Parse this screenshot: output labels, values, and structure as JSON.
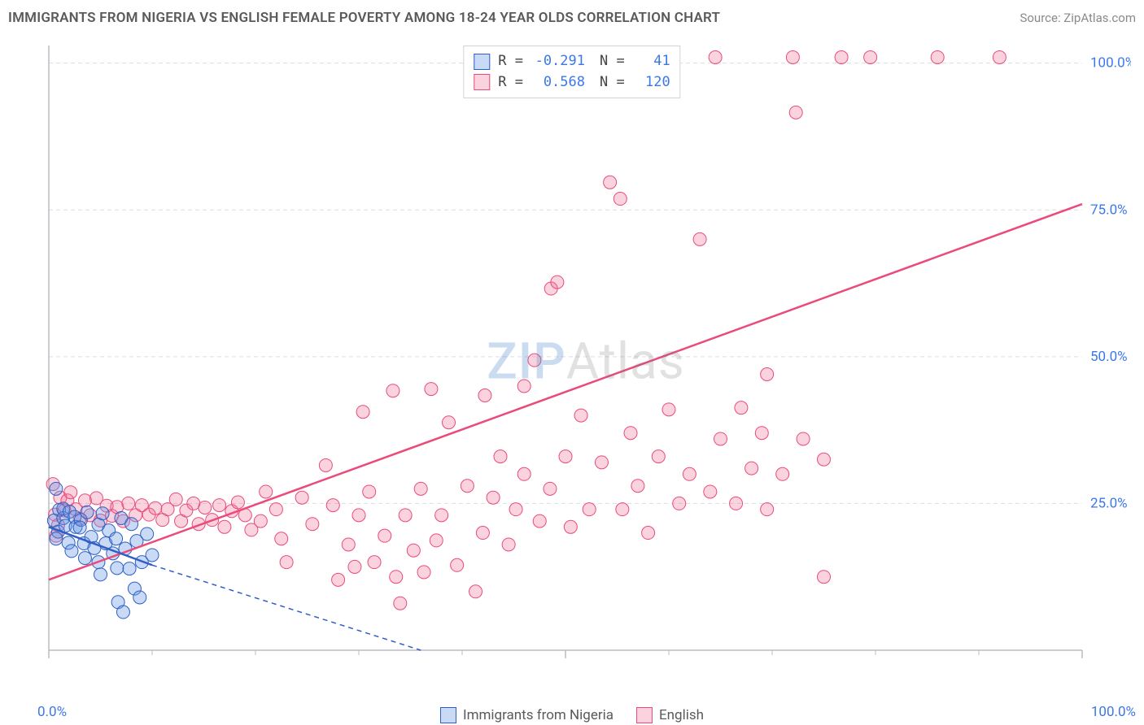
{
  "header": {
    "title": "IMMIGRANTS FROM NIGERIA VS ENGLISH FEMALE POVERTY AMONG 18-24 YEAR OLDS CORRELATION CHART",
    "source": "Source: ZipAtlas.com"
  },
  "watermark": {
    "zip": "ZIP",
    "atlas": "Atlas"
  },
  "ylabel": "Female Poverty Among 18-24 Year Olds",
  "chart": {
    "type": "scatter",
    "background_color": "#ffffff",
    "grid_color": "#d9dde2",
    "axis_color": "#b8bdc4",
    "tick_color": "#b8bdc4",
    "xlim": [
      0,
      100
    ],
    "ylim": [
      0,
      103
    ],
    "x_ticks_major": [
      0,
      50,
      100
    ],
    "x_ticks_minor": [
      10,
      20,
      30,
      40,
      60,
      70,
      80,
      90
    ],
    "y_ticks_major": [
      25,
      50,
      75,
      100
    ],
    "x_axis_label_left": "0.0%",
    "x_axis_label_right": "100.0%",
    "y_tick_labels": {
      "25": "25.0%",
      "50": "50.0%",
      "75": "75.0%",
      "100": "100.0%"
    },
    "label_color": "#3b78e7",
    "label_fontsize": 17,
    "marker_radius": 8,
    "line_width": 2.5,
    "series": [
      {
        "id": "blue",
        "name": "Immigrants from Nigeria",
        "R": "-0.291",
        "N": "41",
        "fill": "rgba(96,150,230,0.35)",
        "stroke": "#2f5fc4",
        "line_color": "#2f5fc4",
        "dash_extrapolate_color": "#2f5fc4",
        "regression": {
          "x1": 0,
          "y1": 21,
          "x2": 10,
          "y2": 14.5,
          "extrap_x2": 36,
          "extrap_y2": 0
        },
        "points": [
          [
            0.7,
            27.5
          ],
          [
            1.0,
            23.9
          ],
          [
            0.5,
            22.1
          ],
          [
            1.4,
            22.5
          ],
          [
            0.9,
            20.2
          ],
          [
            1.6,
            21.2
          ],
          [
            1.4,
            24.1
          ],
          [
            0.7,
            19.0
          ],
          [
            2.0,
            23.6
          ],
          [
            2.5,
            22.7
          ],
          [
            1.9,
            18.3
          ],
          [
            2.6,
            21.0
          ],
          [
            3.1,
            22.2
          ],
          [
            3.4,
            18.2
          ],
          [
            2.2,
            16.9
          ],
          [
            3.0,
            20.9
          ],
          [
            3.7,
            23.5
          ],
          [
            4.1,
            19.3
          ],
          [
            3.5,
            15.7
          ],
          [
            4.4,
            17.4
          ],
          [
            4.8,
            21.4
          ],
          [
            5.2,
            23.3
          ],
          [
            4.8,
            15.0
          ],
          [
            5.5,
            18.2
          ],
          [
            5.0,
            12.9
          ],
          [
            5.8,
            20.4
          ],
          [
            6.2,
            16.5
          ],
          [
            6.5,
            19.0
          ],
          [
            7.0,
            22.5
          ],
          [
            6.6,
            14.0
          ],
          [
            7.4,
            17.3
          ],
          [
            8.0,
            21.5
          ],
          [
            7.8,
            13.9
          ],
          [
            8.5,
            18.6
          ],
          [
            9.0,
            15.0
          ],
          [
            8.3,
            10.5
          ],
          [
            6.7,
            8.2
          ],
          [
            9.5,
            19.8
          ],
          [
            10.0,
            16.2
          ],
          [
            7.2,
            6.5
          ],
          [
            8.8,
            9.0
          ]
        ]
      },
      {
        "id": "pink",
        "name": "English",
        "R": "0.568",
        "N": "120",
        "fill": "rgba(240,110,150,0.30)",
        "stroke": "#ea4b7a",
        "line_color": "#ea4b7a",
        "regression": {
          "x1": 0,
          "y1": 12,
          "x2": 100,
          "y2": 76
        },
        "points": [
          [
            0.4,
            28.3
          ],
          [
            1.1,
            26.0
          ],
          [
            1.8,
            25.5
          ],
          [
            0.6,
            23.1
          ],
          [
            0.9,
            21.3
          ],
          [
            1.5,
            23.8
          ],
          [
            2.1,
            26.9
          ],
          [
            0.7,
            19.5
          ],
          [
            2.6,
            24.0
          ],
          [
            3.0,
            22.4
          ],
          [
            3.5,
            25.5
          ],
          [
            4.0,
            23.0
          ],
          [
            4.6,
            25.9
          ],
          [
            5.0,
            22.1
          ],
          [
            5.6,
            24.6
          ],
          [
            6.1,
            22.9
          ],
          [
            6.6,
            24.4
          ],
          [
            7.2,
            22.0
          ],
          [
            7.7,
            25.0
          ],
          [
            8.4,
            23.0
          ],
          [
            9.0,
            24.7
          ],
          [
            9.7,
            23.1
          ],
          [
            10.3,
            24.2
          ],
          [
            11.0,
            22.2
          ],
          [
            11.5,
            24.0
          ],
          [
            12.3,
            25.7
          ],
          [
            12.8,
            22.0
          ],
          [
            13.3,
            23.8
          ],
          [
            14.0,
            25.0
          ],
          [
            14.5,
            21.5
          ],
          [
            15.1,
            24.3
          ],
          [
            15.8,
            22.2
          ],
          [
            16.5,
            24.7
          ],
          [
            17.0,
            21.0
          ],
          [
            17.7,
            23.7
          ],
          [
            18.3,
            25.2
          ],
          [
            19.0,
            23.0
          ],
          [
            19.6,
            20.5
          ],
          [
            20.5,
            22.0
          ],
          [
            21.0,
            27.0
          ],
          [
            22.0,
            24.0
          ],
          [
            22.5,
            19.0
          ],
          [
            23.0,
            15.0
          ],
          [
            24.5,
            26.0
          ],
          [
            25.5,
            21.5
          ],
          [
            27.5,
            24.7
          ],
          [
            26.8,
            31.5
          ],
          [
            28.0,
            12.0
          ],
          [
            29.0,
            18.0
          ],
          [
            29.6,
            14.2
          ],
          [
            30.0,
            23.0
          ],
          [
            30.4,
            40.6
          ],
          [
            31.0,
            27.0
          ],
          [
            31.5,
            15.0
          ],
          [
            32.5,
            19.5
          ],
          [
            33.3,
            44.2
          ],
          [
            33.6,
            12.5
          ],
          [
            34.5,
            23.0
          ],
          [
            35.3,
            17.0
          ],
          [
            36.0,
            27.5
          ],
          [
            36.3,
            13.3
          ],
          [
            37.0,
            44.5
          ],
          [
            37.5,
            18.7
          ],
          [
            38.0,
            23.0
          ],
          [
            38.7,
            38.8
          ],
          [
            39.5,
            14.5
          ],
          [
            34.0,
            8.0
          ],
          [
            40.5,
            28.0
          ],
          [
            41.3,
            10.0
          ],
          [
            42.0,
            20.0
          ],
          [
            42.2,
            43.4
          ],
          [
            43.0,
            26.0
          ],
          [
            43.7,
            33.0
          ],
          [
            44.5,
            18.0
          ],
          [
            45.2,
            24.0
          ],
          [
            46.0,
            30.0
          ],
          [
            46.0,
            45.0
          ],
          [
            47.0,
            49.4
          ],
          [
            47.5,
            22.0
          ],
          [
            48.5,
            27.5
          ],
          [
            49.5,
            101.0
          ],
          [
            50.0,
            33.0
          ],
          [
            50.5,
            21.0
          ],
          [
            51.5,
            40.0
          ],
          [
            52.3,
            24.0
          ],
          [
            48.6,
            61.6
          ],
          [
            53.5,
            32.0
          ],
          [
            54.3,
            79.7
          ],
          [
            49.2,
            62.7
          ],
          [
            55.5,
            24.0
          ],
          [
            56.3,
            37.0
          ],
          [
            57.0,
            28.0
          ],
          [
            58.0,
            20.0
          ],
          [
            55.3,
            76.9
          ],
          [
            58.3,
            101.0
          ],
          [
            59.0,
            33.0
          ],
          [
            60.0,
            41.0
          ],
          [
            61.0,
            25.0
          ],
          [
            62.0,
            30.0
          ],
          [
            60.2,
            101.0
          ],
          [
            63.0,
            70.0
          ],
          [
            64.0,
            27.0
          ],
          [
            65.0,
            36.0
          ],
          [
            64.5,
            101.0
          ],
          [
            66.5,
            25.0
          ],
          [
            67.0,
            41.3
          ],
          [
            68.0,
            31.0
          ],
          [
            69.5,
            24.0
          ],
          [
            69.0,
            37.0
          ],
          [
            69.5,
            47.0
          ],
          [
            71.0,
            30.0
          ],
          [
            72.0,
            101.0
          ],
          [
            76.7,
            101.0
          ],
          [
            73.0,
            36.0
          ],
          [
            75.0,
            32.5
          ],
          [
            75.0,
            12.5
          ],
          [
            79.5,
            101.0
          ],
          [
            72.3,
            91.6
          ],
          [
            86.0,
            101.0
          ],
          [
            92.0,
            101.0
          ]
        ]
      }
    ]
  },
  "legend_top": {
    "rows": [
      {
        "series": "blue",
        "R_label": "R =",
        "R": "-0.291",
        "N_label": "N =",
        "N": "  41"
      },
      {
        "series": "pink",
        "R_label": "R =",
        "R": " 0.568",
        "N_label": "N =",
        "N": " 120"
      }
    ]
  },
  "bottom_legend": {
    "items": [
      {
        "series": "blue",
        "label": "Immigrants from Nigeria"
      },
      {
        "series": "pink",
        "label": "English"
      }
    ]
  }
}
